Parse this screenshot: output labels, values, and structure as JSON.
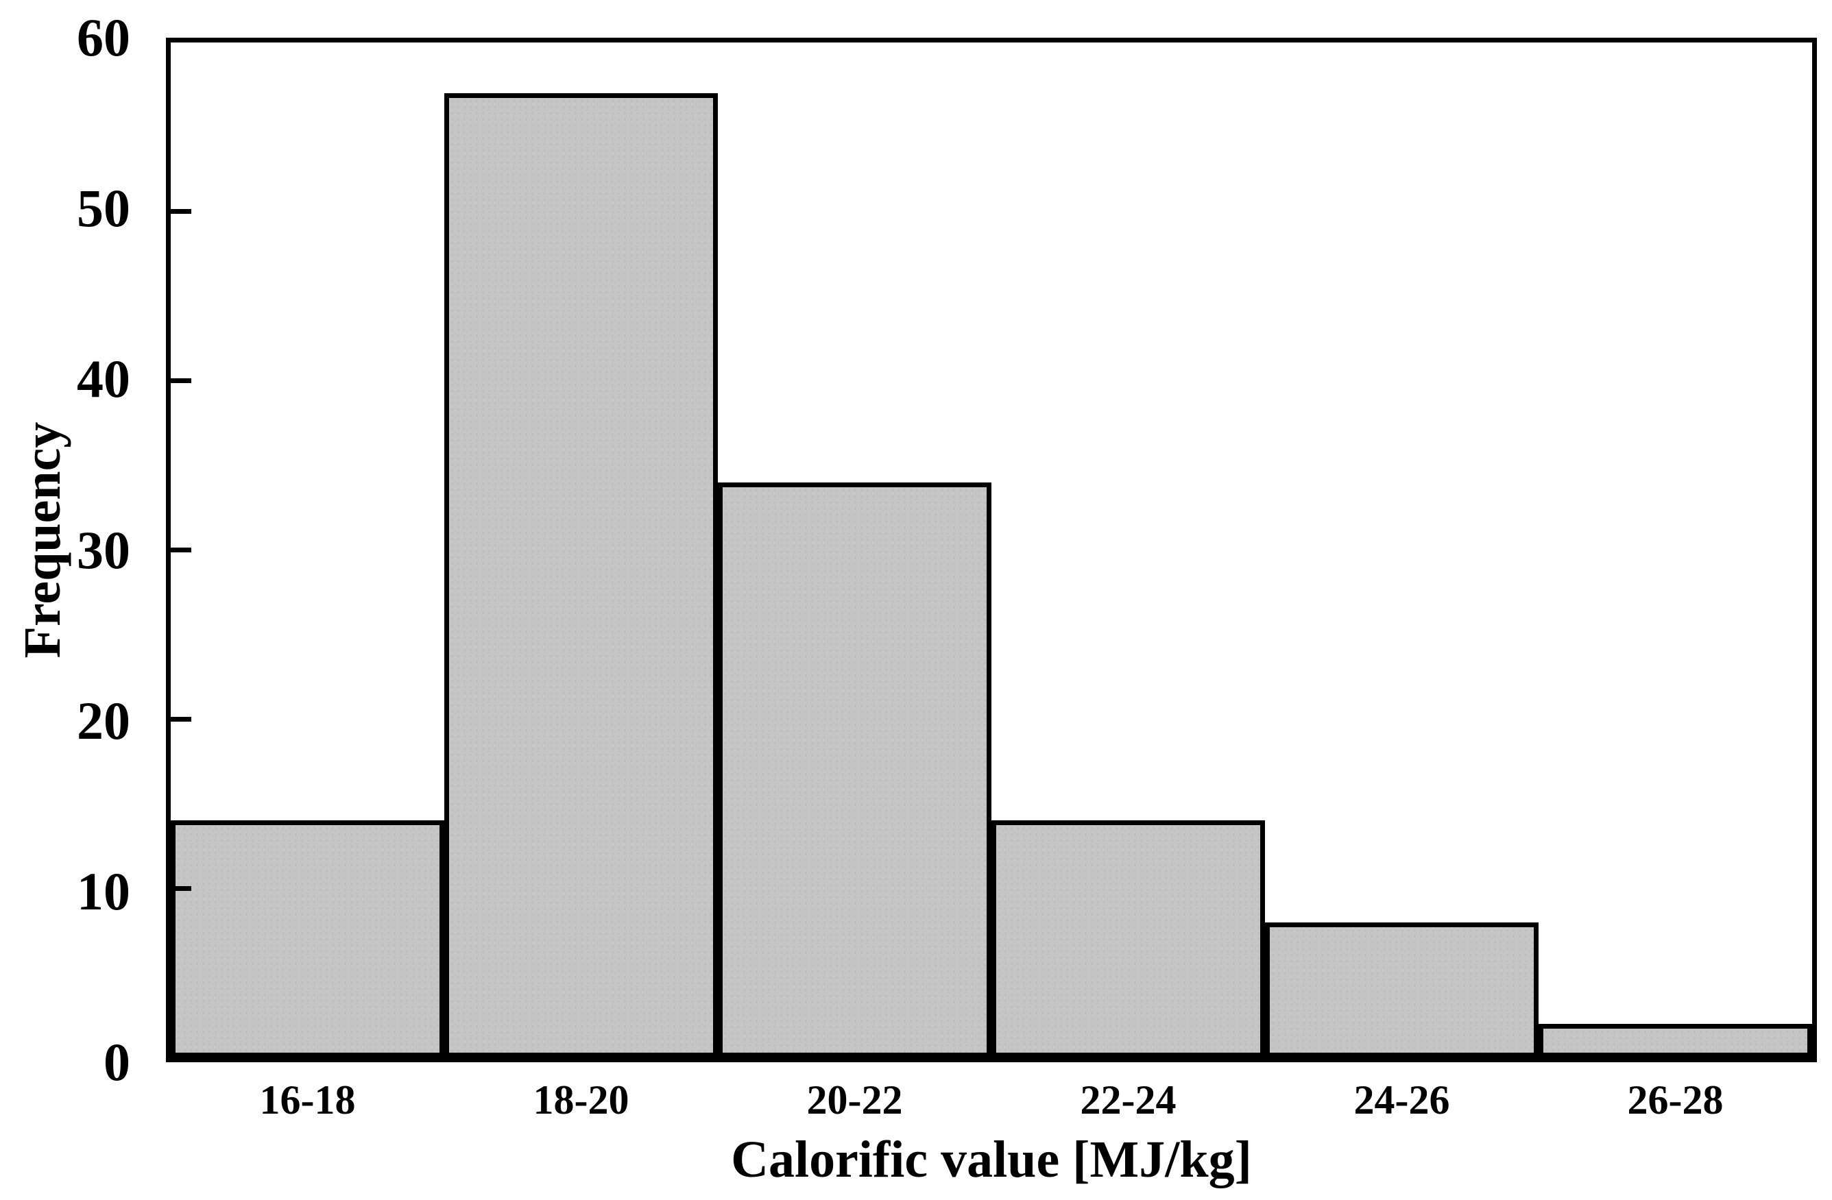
{
  "figure": {
    "background_color": "#ffffff",
    "text_color": "#000000"
  },
  "chart_data": {
    "type": "bar",
    "subtype": "histogram",
    "title": "",
    "xlabel": "Calorific value [MJ/kg]",
    "ylabel": "Frequency",
    "categories": [
      "16-18",
      "18-20",
      "20-22",
      "22-24",
      "24-26",
      "26-28"
    ],
    "values": [
      14,
      57,
      34,
      14,
      8,
      2
    ],
    "ylim": [
      0,
      60
    ],
    "yticks": [
      0,
      10,
      20,
      30,
      40,
      50,
      60
    ],
    "grid": false,
    "legend_position": "none",
    "bar_fill_color": "#c5c5c5",
    "bar_border_color": "#000000",
    "frame_color": "#000000",
    "gap_between_bars": 0
  }
}
